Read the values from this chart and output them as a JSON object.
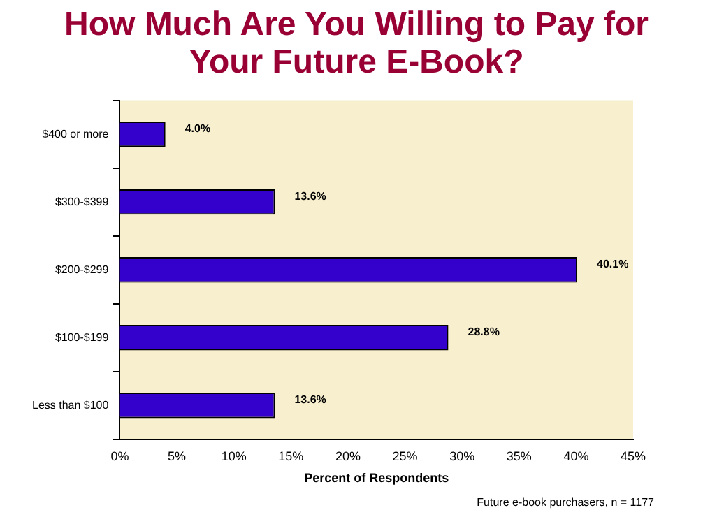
{
  "chart_data": {
    "type": "bar",
    "orientation": "horizontal",
    "title": "How Much Are You Willing to Pay for Your Future E-Book?",
    "xlabel": "Percent of Respondents",
    "categories": [
      "$400 or more",
      "$300-$399",
      "$200-$299",
      "$100-$199",
      "Less than $100"
    ],
    "values": [
      4.0,
      13.6,
      40.1,
      28.8,
      13.6
    ],
    "color": "#3300cc",
    "value_labels": [
      "4.0%",
      "13.6%",
      "40.1%",
      "28.8%",
      "13.6%"
    ],
    "xlim": [
      0,
      45
    ],
    "xticks": [
      {
        "value": 0,
        "label": "0%"
      },
      {
        "value": 5,
        "label": "5%"
      },
      {
        "value": 10,
        "label": "10%"
      },
      {
        "value": 15,
        "label": "15%"
      },
      {
        "value": 20,
        "label": "20%"
      },
      {
        "value": 25,
        "label": "25%"
      },
      {
        "value": 30,
        "label": "30%"
      },
      {
        "value": 35,
        "label": "35%"
      },
      {
        "value": 40,
        "label": "40%"
      },
      {
        "value": 45,
        "label": "45%"
      }
    ],
    "grid": false,
    "legend": false,
    "annotations": [
      "Future e-book purchasers, n = 1177"
    ]
  }
}
